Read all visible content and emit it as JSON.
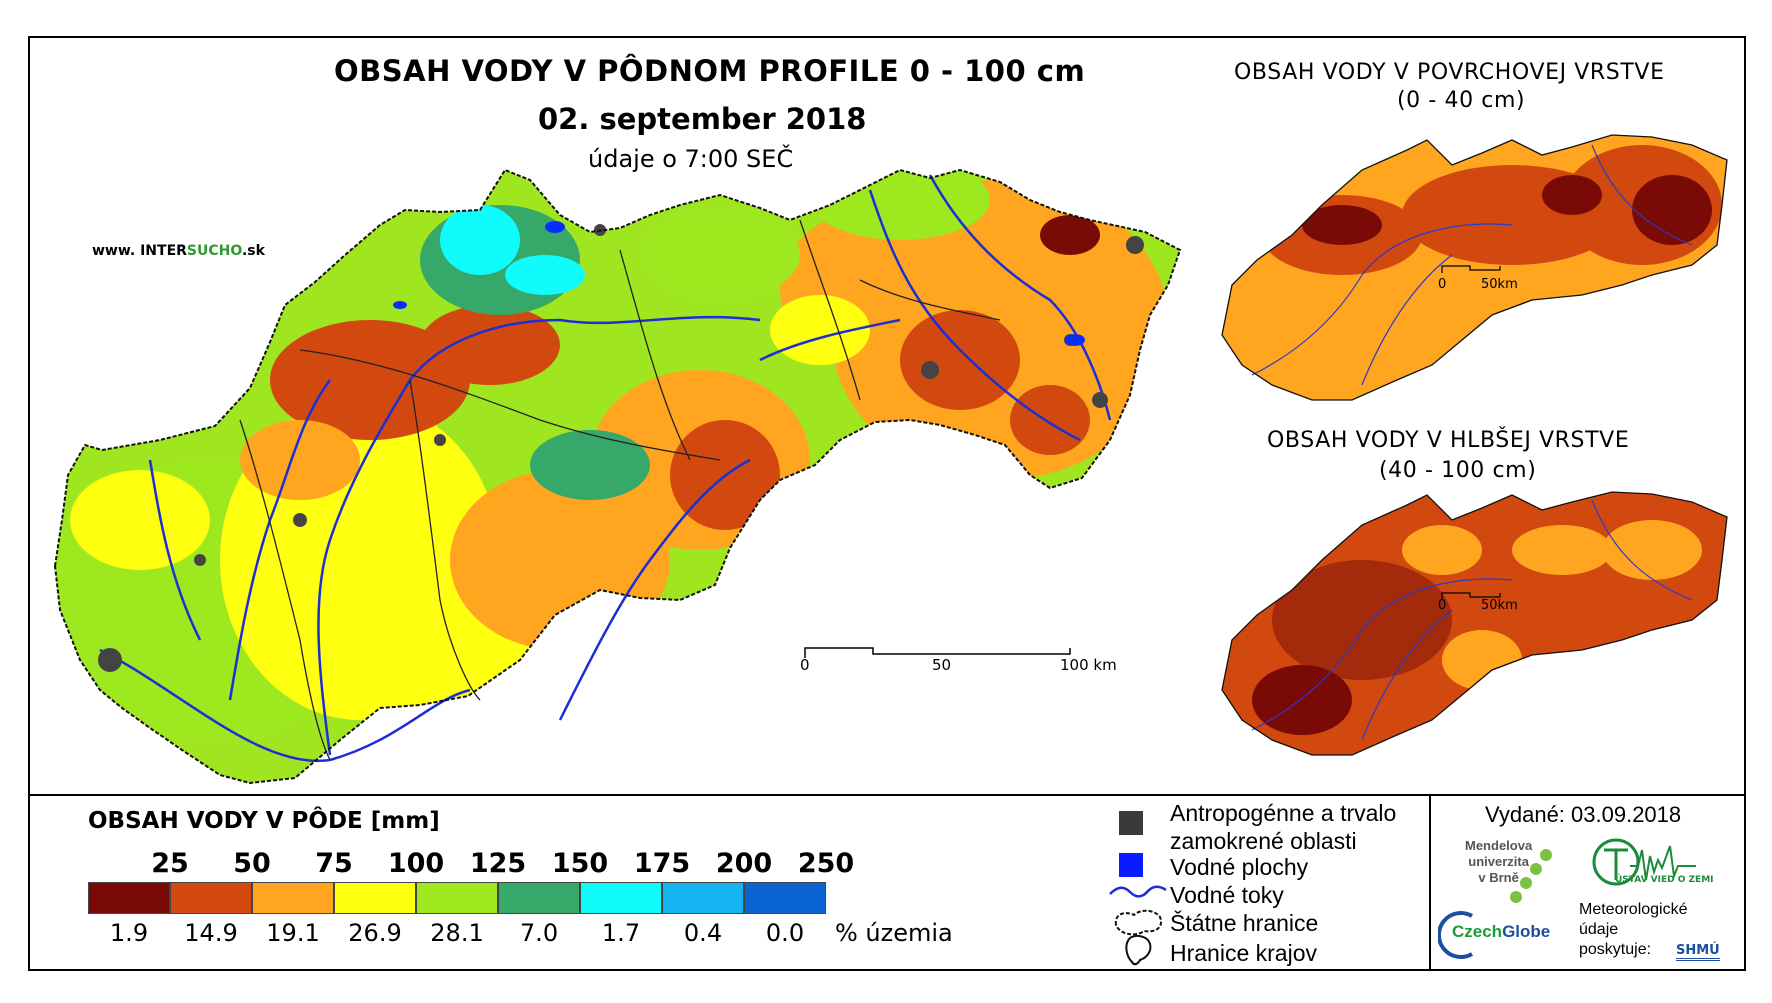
{
  "header": {
    "title": "OBSAH VODY V PÔDNOM PROFILE 0 - 100 cm",
    "date": "02. september 2018",
    "time_note": "údaje o 7:00 SEČ",
    "website_prefix": "www. INTER",
    "website_accent": "SUCHO",
    "website_suffix": ".sk"
  },
  "insets": {
    "surface": {
      "title_line1": "OBSAH VODY V POVRCHOVEJ VRSTVE",
      "title_line2": "(0 - 40 cm)",
      "scale_start": "0",
      "scale_end": "50km"
    },
    "deep": {
      "title_line1": "OBSAH VODY V HLBŠEJ VRSTVE",
      "title_line2": "(40 - 100 cm)",
      "scale_start": "0",
      "scale_end": "50km"
    }
  },
  "main_scale": {
    "labels": [
      "0",
      "50",
      "100 km"
    ]
  },
  "legend": {
    "title": "OBSAH VODY V PÔDE [mm]",
    "thresholds": [
      "25",
      "50",
      "75",
      "100",
      "125",
      "150",
      "175",
      "200",
      "250"
    ],
    "classes": [
      {
        "color": "#7a0a06",
        "percent": "1.9"
      },
      {
        "color": "#d2490f",
        "percent": "14.9"
      },
      {
        "color": "#ffa520",
        "percent": "19.1"
      },
      {
        "color": "#ffff10",
        "percent": "26.9"
      },
      {
        "color": "#9de81e",
        "percent": "28.1"
      },
      {
        "color": "#36a86a",
        "percent": "7.0"
      },
      {
        "color": "#10fbfb",
        "percent": "1.7"
      },
      {
        "color": "#14b4f0",
        "percent": "0.4"
      },
      {
        "color": "#0a64d2",
        "percent": "0.0"
      }
    ],
    "percent_unit": "% územia"
  },
  "symbols": {
    "urban_line1": "Antropogénne a trvalo",
    "urban_line2": "zamokrené oblasti",
    "water_bodies": "Vodné plochy",
    "rivers": "Vodné toky",
    "state_border": "Štátne hranice",
    "regions": "Hranice krajov"
  },
  "credits": {
    "issued": "Vydané: 03.09.2018",
    "mendel_line1": "Mendelova",
    "mendel_line2": "univerzita",
    "mendel_line3": "v Brně",
    "czechglobe_a": "Czech",
    "czechglobe_b": "Globe",
    "uvoz": "ÚSTAV VIED O ZEMI",
    "meteo_line1": "Meteorologické",
    "meteo_line2": "údaje",
    "meteo_line3": "poskytuje:",
    "shmu": "SHMÚ"
  }
}
